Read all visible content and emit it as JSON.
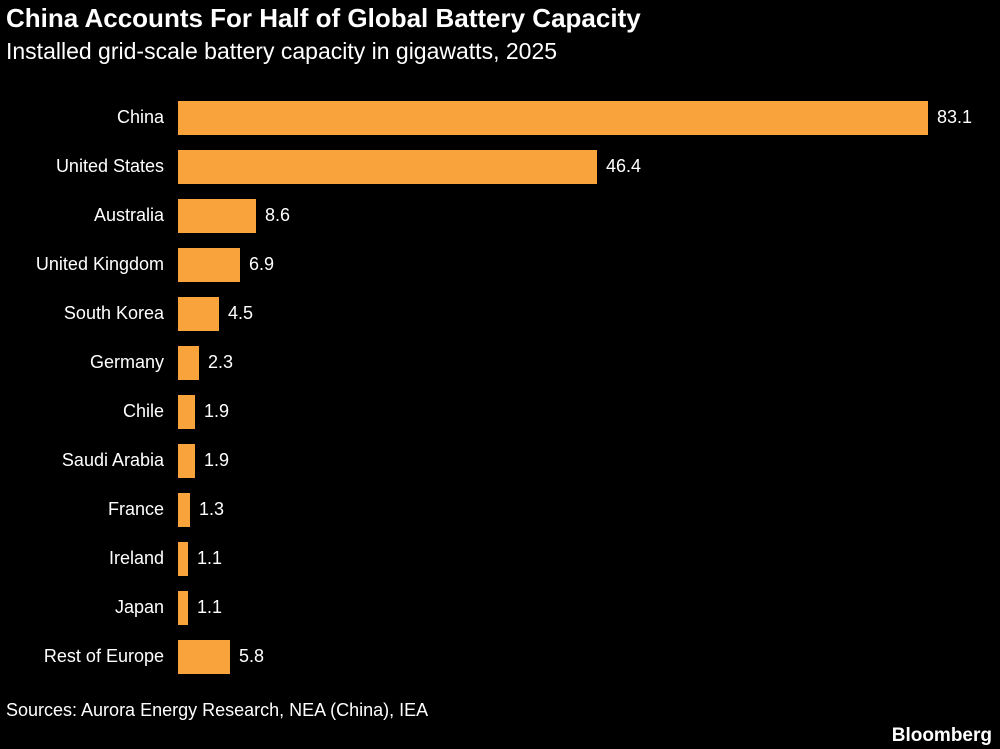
{
  "header": {
    "title": "China Accounts For Half of Global Battery Capacity",
    "subtitle": "Installed grid-scale battery capacity in gigawatts, 2025"
  },
  "footer": {
    "sources": "Sources: Aurora Energy Research, NEA (China), IEA",
    "brand": "Bloomberg"
  },
  "colors": {
    "background": "#000000",
    "bar": "#F8A33B",
    "text": "#FFFFFF"
  },
  "chart_data": {
    "type": "bar",
    "orientation": "horizontal",
    "title": "China Accounts For Half of Global Battery Capacity",
    "subtitle": "Installed grid-scale battery capacity in gigawatts, 2025",
    "unit": "gigawatts",
    "categories": [
      "China",
      "United States",
      "Australia",
      "United Kingdom",
      "South Korea",
      "Germany",
      "Chile",
      "Saudi Arabia",
      "France",
      "Ireland",
      "Japan",
      "Rest of Europe"
    ],
    "values": [
      83.1,
      46.4,
      8.6,
      6.9,
      4.5,
      2.3,
      1.9,
      1.9,
      1.3,
      1.1,
      1.1,
      5.8
    ],
    "xlim": [
      0,
      90
    ],
    "grid": false,
    "legend": "none",
    "value_labels": "end-of-bar, one decimal"
  }
}
